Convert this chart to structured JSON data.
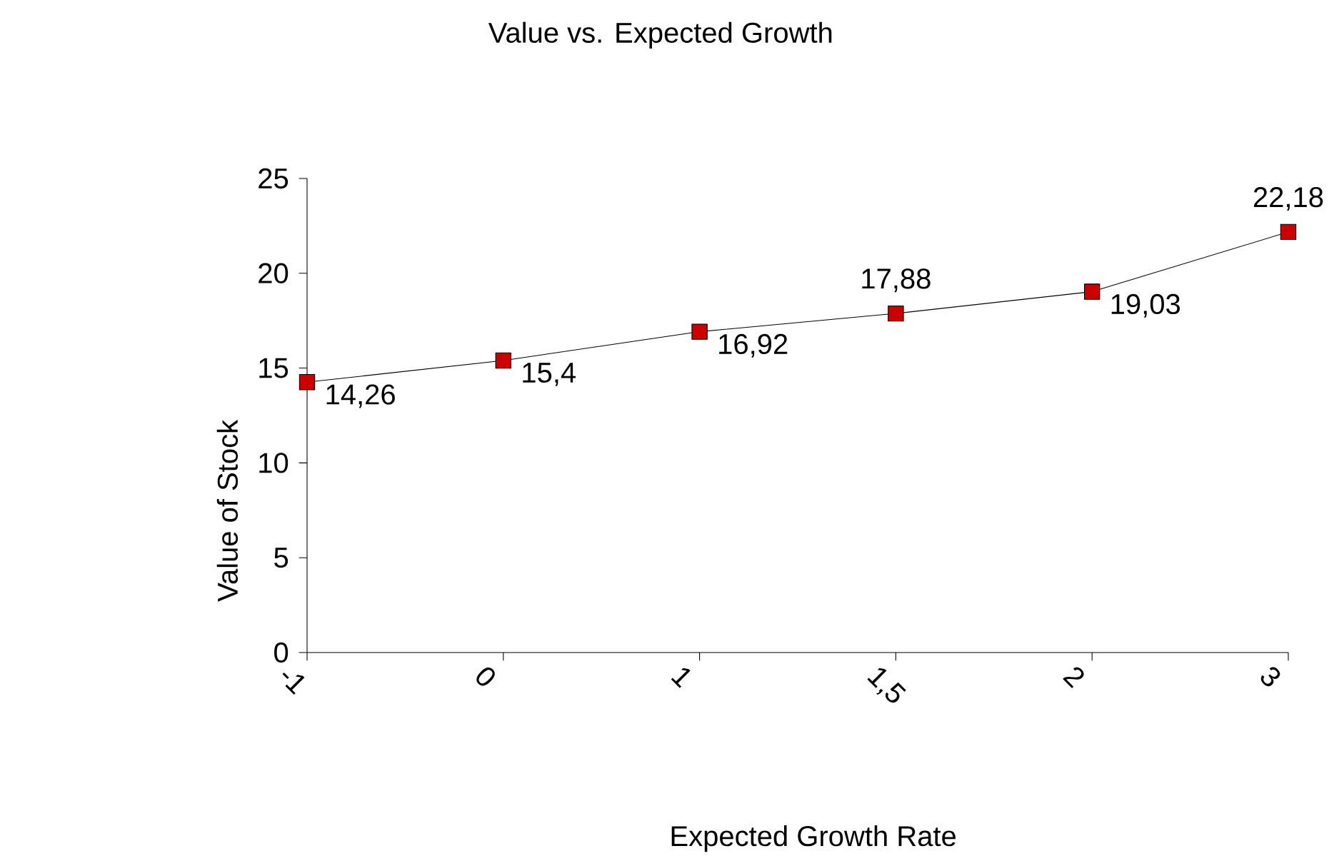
{
  "chart_data": {
    "type": "line",
    "title": "Value vs. Expected Growth",
    "xlabel": "Expected Growth Rate",
    "ylabel": "Value of Stock",
    "categories": [
      "-1",
      "0",
      "1",
      "1,5",
      "2",
      "3"
    ],
    "series": [
      {
        "color": "#cc0000",
        "values": [
          14.26,
          15.4,
          16.92,
          17.88,
          19.03,
          22.18
        ],
        "value_labels": [
          "14,26",
          "15,4",
          "16,92",
          "17,88",
          "19,03",
          "22,18"
        ]
      }
    ],
    "ylim": [
      0,
      25
    ],
    "yticks": [
      0,
      5,
      10,
      15,
      20,
      25
    ],
    "grid": false,
    "marker": "square",
    "line_style": "solid"
  }
}
